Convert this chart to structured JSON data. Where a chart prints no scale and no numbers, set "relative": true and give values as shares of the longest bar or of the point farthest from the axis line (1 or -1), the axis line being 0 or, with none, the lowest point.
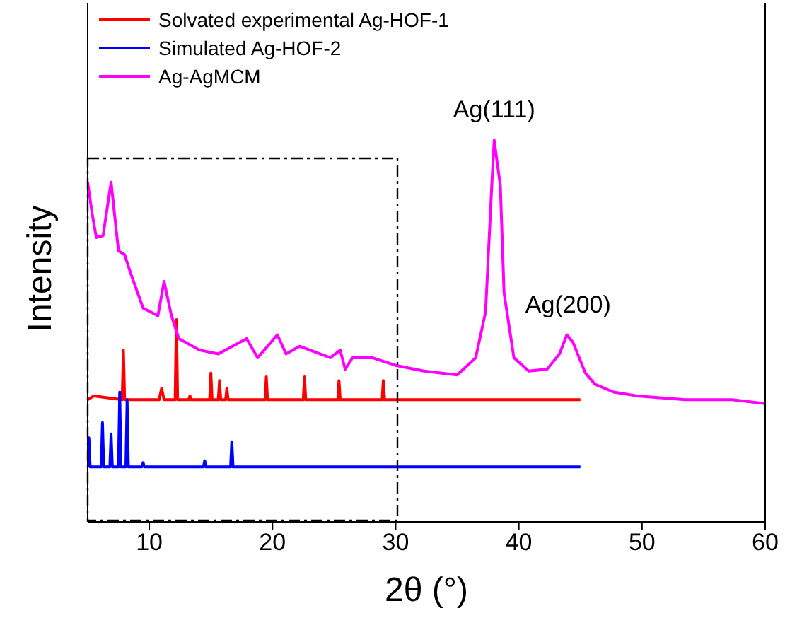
{
  "chart_data": {
    "type": "line",
    "relative": true,
    "xlabel": "2θ (°)",
    "ylabel": "Intensity",
    "xlim": [
      5,
      60
    ],
    "xticks": [
      10,
      20,
      30,
      40,
      50,
      60
    ],
    "legend": "top left",
    "annotations": [
      {
        "text": "Ag(111)",
        "x": 38,
        "y": 1.0
      },
      {
        "text": "Ag(200)",
        "x": 44,
        "y": 0.49
      }
    ],
    "series": [
      {
        "name": "Solvated experimental Ag-HOF-1",
        "color": "#ff0000",
        "x": [
          5,
          5.5,
          7.8,
          7.9,
          8.0,
          10.8,
          11.0,
          11.2,
          12.1,
          12.2,
          12.3,
          13.2,
          13.3,
          13.4,
          14.9,
          15.0,
          15.1,
          15.6,
          15.7,
          15.8,
          16.2,
          16.3,
          16.4,
          19.4,
          19.5,
          19.6,
          22.5,
          22.6,
          22.7,
          25.3,
          25.4,
          25.5,
          28.9,
          29.0,
          29.1,
          45
        ],
        "values": [
          0.32,
          0.33,
          0.32,
          0.45,
          0.32,
          0.32,
          0.35,
          0.32,
          0.32,
          0.53,
          0.32,
          0.32,
          0.33,
          0.32,
          0.32,
          0.39,
          0.32,
          0.32,
          0.37,
          0.32,
          0.32,
          0.35,
          0.32,
          0.32,
          0.38,
          0.32,
          0.32,
          0.38,
          0.32,
          0.32,
          0.37,
          0.32,
          0.32,
          0.37,
          0.32,
          0.32
        ]
      },
      {
        "name": "Simulated Ag-HOF-2",
        "color": "#0000ff",
        "x": [
          5,
          5.1,
          5.2,
          6.1,
          6.2,
          6.3,
          6.8,
          6.9,
          7.0,
          7.5,
          7.6,
          7.7,
          8.1,
          8.2,
          8.3,
          9.4,
          9.5,
          9.6,
          14.4,
          14.5,
          14.6,
          16.6,
          16.7,
          16.8,
          45
        ],
        "values": [
          0.144,
          0.22,
          0.144,
          0.144,
          0.26,
          0.144,
          0.144,
          0.23,
          0.144,
          0.144,
          0.34,
          0.144,
          0.144,
          0.32,
          0.144,
          0.144,
          0.155,
          0.144,
          0.144,
          0.16,
          0.144,
          0.144,
          0.21,
          0.144,
          0.144
        ]
      },
      {
        "name": "Ag-AgMCM",
        "color": "#ff00ff",
        "x": [
          5,
          5.35,
          5.7,
          6.25,
          6.9,
          7.5,
          8.0,
          8.5,
          9.5,
          10.7,
          11.2,
          11.8,
          12.4,
          14.1,
          15.6,
          17.9,
          18.8,
          20.4,
          21.1,
          22.2,
          24.7,
          25.5,
          25.9,
          26.5,
          28.1,
          30,
          32.3,
          35,
          36.5,
          37.3,
          37.8,
          38.0,
          38.5,
          38.8,
          39.6,
          40.8,
          42.3,
          43.3,
          43.9,
          44.4,
          45.4,
          46.2,
          47.7,
          49.6,
          53.5,
          57.3,
          60
        ],
        "values": [
          0.89,
          0.81,
          0.745,
          0.75,
          0.89,
          0.71,
          0.7,
          0.65,
          0.56,
          0.54,
          0.63,
          0.54,
          0.48,
          0.45,
          0.44,
          0.48,
          0.43,
          0.49,
          0.44,
          0.46,
          0.43,
          0.45,
          0.4,
          0.43,
          0.43,
          0.41,
          0.395,
          0.385,
          0.43,
          0.55,
          0.88,
          1.0,
          0.88,
          0.6,
          0.43,
          0.395,
          0.4,
          0.44,
          0.49,
          0.47,
          0.39,
          0.36,
          0.34,
          0.33,
          0.32,
          0.32,
          0.31
        ]
      }
    ]
  }
}
